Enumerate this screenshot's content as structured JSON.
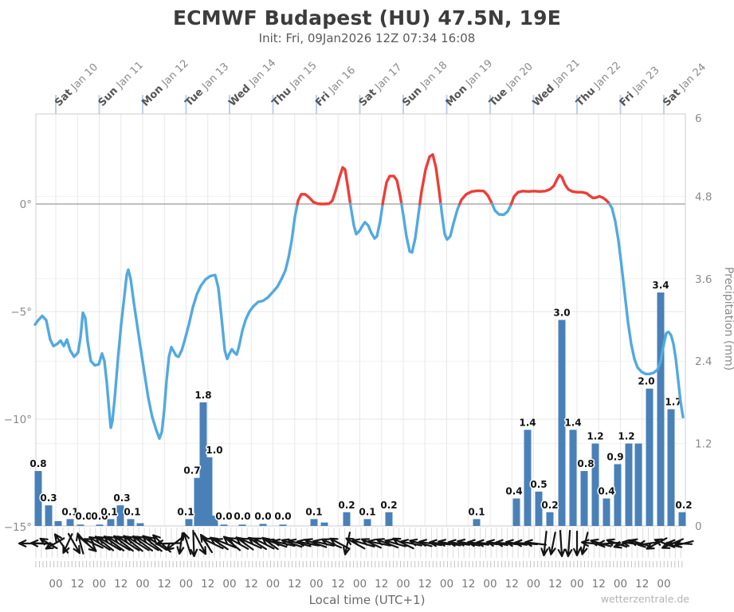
{
  "header": {
    "title": "ECMWF Budapest (HU) 47.5N, 19E",
    "subtitle": "Init: Fri, 09Jan2026 12Z 07:34 16:08"
  },
  "footer": {
    "xlabel": "Local time (UTC+1)",
    "watermark": "wetterzentrale.de"
  },
  "colors": {
    "temp_line_blue": "#52a9e0",
    "temp_line_red": "#ec3e38",
    "bar_blue": "#4a80b8",
    "grid": "#e7e7e7",
    "grid_light": "#f1f1f1",
    "zero_line": "#9a9a9a",
    "border": "#cccccc",
    "day_tick_blue": "#bdd0ee",
    "wind_black": "#141414",
    "wind_grid": "#dcdcdc",
    "tick_strip": "#c2c2c2",
    "axis_text": "#8a8a8a",
    "day_text_bold": "#555555",
    "day_text": "#8a8a8a",
    "bar_label": "#111111"
  },
  "chart_data": {
    "type": "line+bar",
    "title": "ECMWF Budapest (HU) 47.5N, 19E",
    "temp_axis": {
      "side": "left",
      "ticks": [
        {
          "label": "0°",
          "t": 0
        },
        {
          "label": "−5°",
          "t": -5
        },
        {
          "label": "−10°",
          "t": -10
        },
        {
          "label": "−15°",
          "t": -15
        }
      ],
      "range_top_c": 4.2,
      "range_bottom_c": -15.1
    },
    "precip_axis": {
      "side": "right",
      "label": "Precipitation (mm)",
      "ticks": [
        {
          "label": "6",
          "v": 6
        },
        {
          "label": "4.8",
          "v": 4.8
        },
        {
          "label": "3.6",
          "v": 3.6
        },
        {
          "label": "2.4",
          "v": 2.4
        },
        {
          "label": "1.2",
          "v": 1.2
        },
        {
          "label": "0",
          "v": 0
        }
      ]
    },
    "days": [
      [
        "Sat",
        "Jan 10"
      ],
      [
        "Sun",
        "Jan 11"
      ],
      [
        "Mon",
        "Jan 12"
      ],
      [
        "Tue",
        "Jan 13"
      ],
      [
        "Wed",
        "Jan 14"
      ],
      [
        "Thu",
        "Jan 15"
      ],
      [
        "Fri",
        "Jan 16"
      ],
      [
        "Sat",
        "Jan 17"
      ],
      [
        "Sun",
        "Jan 18"
      ],
      [
        "Mon",
        "Jan 19"
      ],
      [
        "Tue",
        "Jan 20"
      ],
      [
        "Wed",
        "Jan 21"
      ],
      [
        "Thu",
        "Jan 22"
      ],
      [
        "Fri",
        "Jan 23"
      ],
      [
        "Sat",
        "Jan 24"
      ]
    ],
    "hour_labels": [
      "00",
      "12"
    ],
    "precip_bars_mm": [
      [
        48,
        0.8,
        "0.8",
        0
      ],
      [
        61,
        0.3,
        "0.3",
        0
      ],
      [
        73,
        0.07,
        "",
        0
      ],
      [
        88,
        0.1,
        "0.1",
        0
      ],
      [
        101,
        0.02,
        "0.0",
        4
      ],
      [
        125,
        0.02,
        "0.0",
        0
      ],
      [
        139,
        0.1,
        "0.1",
        -2
      ],
      [
        151,
        0.3,
        "0.3",
        2
      ],
      [
        164,
        0.1,
        "0.1",
        2
      ],
      [
        176,
        0.04,
        "",
        0
      ],
      [
        237,
        0.1,
        "0.1",
        -4
      ],
      [
        248,
        0.7,
        "0.7",
        -7
      ],
      [
        255,
        1.8,
        "1.8",
        0
      ],
      [
        262,
        1.0,
        "1.0",
        7
      ],
      [
        269,
        0.15,
        "",
        0
      ],
      [
        281,
        0.02,
        "0.0",
        0
      ],
      [
        304,
        0.02,
        "0.0",
        0
      ],
      [
        330,
        0.03,
        "0.0",
        0
      ],
      [
        355,
        0.02,
        "0.0",
        0
      ],
      [
        394,
        0.1,
        "0.1",
        0
      ],
      [
        407,
        0.05,
        "",
        0
      ],
      [
        435,
        0.2,
        "0.2",
        0
      ],
      [
        461,
        0.1,
        "0.1",
        0
      ],
      [
        488,
        0.2,
        "0.2",
        0
      ],
      [
        598,
        0.1,
        "0.1",
        0
      ],
      [
        648,
        0.4,
        "0.4",
        -3
      ],
      [
        662,
        1.4,
        "1.4",
        0
      ],
      [
        676,
        0.5,
        "0.5",
        0
      ],
      [
        690,
        0.2,
        "0.2",
        0
      ],
      [
        705,
        3.0,
        "3.0",
        0
      ],
      [
        719,
        1.4,
        "1.4",
        0
      ],
      [
        733,
        0.8,
        "0.8",
        2
      ],
      [
        747,
        1.2,
        "1.2",
        0
      ],
      [
        761,
        0.4,
        "0.4",
        0
      ],
      [
        775,
        0.9,
        "0.9",
        -3
      ],
      [
        789,
        1.2,
        "1.2",
        -3
      ],
      [
        801,
        1.2,
        "",
        0
      ],
      [
        815,
        2.0,
        "2.0",
        -4
      ],
      [
        829,
        3.4,
        "3.4",
        0
      ],
      [
        842,
        1.7,
        "1.7",
        3
      ],
      [
        856,
        0.2,
        "0.2",
        2
      ]
    ],
    "temperature_c": [
      [
        44,
        -5.6
      ],
      [
        48,
        -5.4
      ],
      [
        53,
        -5.2
      ],
      [
        58,
        -5.4
      ],
      [
        63,
        -6.3
      ],
      [
        67,
        -6.6
      ],
      [
        72,
        -6.5
      ],
      [
        76,
        -6.35
      ],
      [
        80,
        -6.6
      ],
      [
        84,
        -6.3
      ],
      [
        88,
        -6.8
      ],
      [
        93,
        -7.1
      ],
      [
        98,
        -6.9
      ],
      [
        101,
        -6.2
      ],
      [
        104,
        -5.05
      ],
      [
        107,
        -5.3
      ],
      [
        110,
        -6.4
      ],
      [
        114,
        -7.3
      ],
      [
        119,
        -7.5
      ],
      [
        124,
        -7.45
      ],
      [
        128,
        -6.95
      ],
      [
        131,
        -7.3
      ],
      [
        134,
        -8.3
      ],
      [
        137,
        -9.6
      ],
      [
        139,
        -10.4
      ],
      [
        141,
        -10.1
      ],
      [
        144,
        -9.0
      ],
      [
        148,
        -7.2
      ],
      [
        152,
        -5.6
      ],
      [
        156,
        -4.3
      ],
      [
        159,
        -3.3
      ],
      [
        161,
        -3.05
      ],
      [
        164,
        -3.5
      ],
      [
        168,
        -4.6
      ],
      [
        172,
        -5.6
      ],
      [
        176,
        -6.6
      ],
      [
        181,
        -7.8
      ],
      [
        186,
        -9.0
      ],
      [
        191,
        -9.9
      ],
      [
        196,
        -10.5
      ],
      [
        200,
        -10.9
      ],
      [
        203,
        -10.6
      ],
      [
        206,
        -9.6
      ],
      [
        209,
        -8.2
      ],
      [
        212,
        -7.1
      ],
      [
        215,
        -6.65
      ],
      [
        218,
        -6.85
      ],
      [
        221,
        -7.05
      ],
      [
        224,
        -7.1
      ],
      [
        228,
        -6.8
      ],
      [
        232,
        -6.3
      ],
      [
        237,
        -5.6
      ],
      [
        242,
        -4.8
      ],
      [
        247,
        -4.2
      ],
      [
        252,
        -3.8
      ],
      [
        258,
        -3.5
      ],
      [
        264,
        -3.35
      ],
      [
        270,
        -3.3
      ],
      [
        274,
        -3.9
      ],
      [
        278,
        -5.3
      ],
      [
        282,
        -6.8
      ],
      [
        285,
        -7.2
      ],
      [
        288,
        -6.95
      ],
      [
        291,
        -6.75
      ],
      [
        294,
        -6.9
      ],
      [
        297,
        -7.0
      ],
      [
        300,
        -6.6
      ],
      [
        304,
        -5.9
      ],
      [
        308,
        -5.4
      ],
      [
        313,
        -5.0
      ],
      [
        318,
        -4.75
      ],
      [
        324,
        -4.55
      ],
      [
        330,
        -4.5
      ],
      [
        336,
        -4.35
      ],
      [
        342,
        -4.1
      ],
      [
        348,
        -3.85
      ],
      [
        353,
        -3.5
      ],
      [
        358,
        -3.1
      ],
      [
        362,
        -2.5
      ],
      [
        366,
        -1.7
      ],
      [
        370,
        -0.6
      ],
      [
        374,
        0.15
      ],
      [
        378,
        0.45
      ],
      [
        383,
        0.45
      ],
      [
        388,
        0.3
      ],
      [
        393,
        0.1
      ],
      [
        398,
        0.02
      ],
      [
        403,
        0.0
      ],
      [
        408,
        0.0
      ],
      [
        413,
        0.02
      ],
      [
        417,
        0.15
      ],
      [
        421,
        0.6
      ],
      [
        426,
        1.25
      ],
      [
        430,
        1.7
      ],
      [
        433,
        1.6
      ],
      [
        436,
        0.9
      ],
      [
        440,
        -0.1
      ],
      [
        444,
        -1.0
      ],
      [
        447,
        -1.4
      ],
      [
        451,
        -1.25
      ],
      [
        455,
        -1.0
      ],
      [
        458,
        -0.85
      ],
      [
        462,
        -1.0
      ],
      [
        466,
        -1.35
      ],
      [
        470,
        -1.6
      ],
      [
        473,
        -1.5
      ],
      [
        477,
        -0.8
      ],
      [
        481,
        0.2
      ],
      [
        485,
        1.0
      ],
      [
        489,
        1.3
      ],
      [
        494,
        1.3
      ],
      [
        498,
        1.1
      ],
      [
        502,
        0.4
      ],
      [
        506,
        -0.5
      ],
      [
        510,
        -1.5
      ],
      [
        514,
        -2.2
      ],
      [
        517,
        -2.25
      ],
      [
        521,
        -1.6
      ],
      [
        525,
        -0.5
      ],
      [
        529,
        0.6
      ],
      [
        534,
        1.6
      ],
      [
        539,
        2.2
      ],
      [
        543,
        2.3
      ],
      [
        547,
        1.7
      ],
      [
        551,
        0.6
      ],
      [
        555,
        -0.6
      ],
      [
        558,
        -1.4
      ],
      [
        561,
        -1.65
      ],
      [
        565,
        -1.5
      ],
      [
        569,
        -0.9
      ],
      [
        574,
        -0.25
      ],
      [
        579,
        0.2
      ],
      [
        585,
        0.45
      ],
      [
        592,
        0.58
      ],
      [
        600,
        0.62
      ],
      [
        607,
        0.6
      ],
      [
        612,
        0.4
      ],
      [
        617,
        0.05
      ],
      [
        621,
        -0.3
      ],
      [
        626,
        -0.48
      ],
      [
        632,
        -0.5
      ],
      [
        637,
        -0.35
      ],
      [
        641,
        -0.05
      ],
      [
        645,
        0.35
      ],
      [
        650,
        0.55
      ],
      [
        656,
        0.6
      ],
      [
        663,
        0.58
      ],
      [
        670,
        0.6
      ],
      [
        677,
        0.58
      ],
      [
        684,
        0.6
      ],
      [
        690,
        0.68
      ],
      [
        695,
        0.85
      ],
      [
        699,
        1.15
      ],
      [
        702,
        1.35
      ],
      [
        705,
        1.25
      ],
      [
        709,
        0.9
      ],
      [
        713,
        0.68
      ],
      [
        718,
        0.58
      ],
      [
        724,
        0.55
      ],
      [
        730,
        0.55
      ],
      [
        736,
        0.5
      ],
      [
        740,
        0.38
      ],
      [
        744,
        0.28
      ],
      [
        748,
        0.3
      ],
      [
        752,
        0.36
      ],
      [
        756,
        0.3
      ],
      [
        760,
        0.2
      ],
      [
        764,
        0.05
      ],
      [
        768,
        -0.2
      ],
      [
        772,
        -0.8
      ],
      [
        776,
        -1.7
      ],
      [
        780,
        -2.9
      ],
      [
        784,
        -4.2
      ],
      [
        788,
        -5.5
      ],
      [
        792,
        -6.5
      ],
      [
        796,
        -7.2
      ],
      [
        800,
        -7.6
      ],
      [
        805,
        -7.8
      ],
      [
        810,
        -7.9
      ],
      [
        815,
        -7.9
      ],
      [
        820,
        -7.85
      ],
      [
        825,
        -7.7
      ],
      [
        829,
        -7.3
      ],
      [
        833,
        -6.5
      ],
      [
        836,
        -6.0
      ],
      [
        839,
        -5.95
      ],
      [
        842,
        -6.1
      ],
      [
        845,
        -6.5
      ],
      [
        848,
        -7.2
      ],
      [
        851,
        -8.2
      ],
      [
        854,
        -9.2
      ],
      [
        857,
        -9.9
      ]
    ],
    "wind_arrows": [
      [
        40,
        180,
        32
      ],
      [
        52,
        182,
        26
      ],
      [
        61,
        210,
        24
      ],
      [
        69,
        150,
        26
      ],
      [
        77,
        235,
        28
      ],
      [
        85,
        115,
        26
      ],
      [
        93,
        60,
        28
      ],
      [
        101,
        255,
        26
      ],
      [
        109,
        40,
        30
      ],
      [
        117,
        205,
        26
      ],
      [
        125,
        212,
        30
      ],
      [
        131,
        218,
        28
      ],
      [
        137,
        210,
        32
      ],
      [
        143,
        216,
        30
      ],
      [
        149,
        211,
        32
      ],
      [
        155,
        218,
        30
      ],
      [
        161,
        213,
        32
      ],
      [
        167,
        219,
        30
      ],
      [
        173,
        212,
        32
      ],
      [
        179,
        217,
        30
      ],
      [
        185,
        212,
        32
      ],
      [
        191,
        219,
        30
      ],
      [
        197,
        214,
        28
      ],
      [
        203,
        224,
        30
      ],
      [
        211,
        178,
        30
      ],
      [
        219,
        142,
        26
      ],
      [
        227,
        98,
        26
      ],
      [
        235,
        252,
        28
      ],
      [
        243,
        88,
        32
      ],
      [
        251,
        62,
        30
      ],
      [
        259,
        238,
        26
      ],
      [
        267,
        206,
        28
      ],
      [
        275,
        214,
        26
      ],
      [
        283,
        202,
        28
      ],
      [
        291,
        220,
        26
      ],
      [
        299,
        209,
        28
      ],
      [
        307,
        216,
        26
      ],
      [
        315,
        204,
        28
      ],
      [
        323,
        213,
        26
      ],
      [
        331,
        207,
        28
      ],
      [
        339,
        216,
        24
      ],
      [
        347,
        199,
        26
      ],
      [
        356,
        193,
        28
      ],
      [
        366,
        199,
        26
      ],
      [
        376,
        194,
        28
      ],
      [
        386,
        191,
        26
      ],
      [
        396,
        199,
        28
      ],
      [
        406,
        193,
        26
      ],
      [
        416,
        203,
        26
      ],
      [
        426,
        208,
        26
      ],
      [
        436,
        102,
        28
      ],
      [
        446,
        209,
        26
      ],
      [
        456,
        196,
        28
      ],
      [
        466,
        204,
        26
      ],
      [
        476,
        191,
        28
      ],
      [
        486,
        201,
        28
      ],
      [
        496,
        196,
        26
      ],
      [
        506,
        206,
        28
      ],
      [
        516,
        191,
        26
      ],
      [
        528,
        194,
        28
      ],
      [
        540,
        189,
        28
      ],
      [
        552,
        186,
        26
      ],
      [
        564,
        190,
        28
      ],
      [
        576,
        188,
        26
      ],
      [
        588,
        191,
        28
      ],
      [
        600,
        187,
        26
      ],
      [
        612,
        185,
        28
      ],
      [
        624,
        189,
        26
      ],
      [
        636,
        185,
        28
      ],
      [
        648,
        188,
        26
      ],
      [
        660,
        184,
        28
      ],
      [
        672,
        187,
        26
      ],
      [
        684,
        96,
        30
      ],
      [
        694,
        101,
        28
      ],
      [
        704,
        86,
        32
      ],
      [
        714,
        94,
        32
      ],
      [
        724,
        90,
        30
      ],
      [
        734,
        104,
        28
      ],
      [
        744,
        186,
        28
      ],
      [
        754,
        196,
        26
      ],
      [
        764,
        176,
        28
      ],
      [
        774,
        199,
        26
      ],
      [
        784,
        162,
        28
      ],
      [
        794,
        186,
        26
      ],
      [
        804,
        196,
        28
      ],
      [
        814,
        172,
        26
      ],
      [
        824,
        152,
        28
      ],
      [
        834,
        201,
        26
      ],
      [
        844,
        157,
        28
      ],
      [
        853,
        183,
        30
      ],
      [
        858,
        166,
        24
      ]
    ],
    "layout_hints": {
      "grid": "12h vertical, temperature + precipitation horizontal",
      "legend": "none",
      "x_span": "Fri 09 Jan 13h local – Sat 24 Jan 13h local (360 h)"
    }
  }
}
